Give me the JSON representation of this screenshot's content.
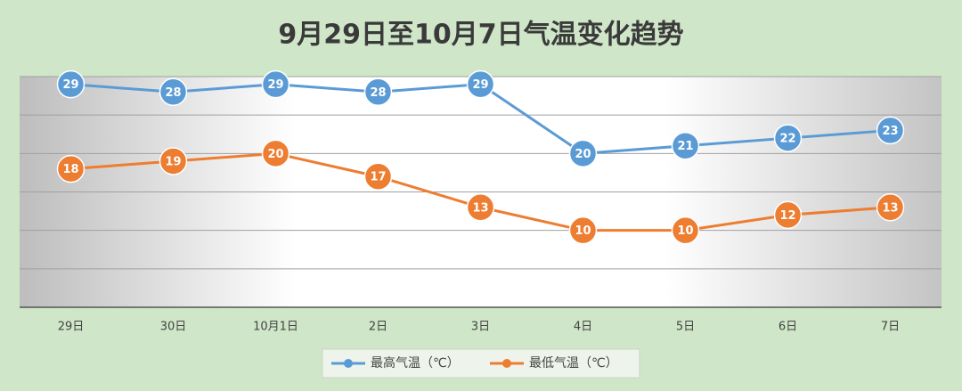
{
  "chart_data": {
    "type": "line",
    "title": "9月29日至10月7日气温变化趋势",
    "categories": [
      "29日",
      "30日",
      "10月1日",
      "2日",
      "3日",
      "4日",
      "5日",
      "6日",
      "7日"
    ],
    "series": [
      {
        "name": "最高气温（℃）",
        "color": "#5b9bd5",
        "values": [
          29,
          28,
          29,
          28,
          29,
          20,
          21,
          22,
          23
        ]
      },
      {
        "name": "最低气温（℃）",
        "color": "#ed7d31",
        "values": [
          18,
          19,
          20,
          17,
          13,
          10,
          10,
          12,
          13
        ]
      }
    ],
    "ylim": [
      0,
      30
    ],
    "yticks": [
      0,
      5,
      10,
      15,
      20,
      25,
      30
    ],
    "grid": true,
    "legend": "bottom"
  }
}
